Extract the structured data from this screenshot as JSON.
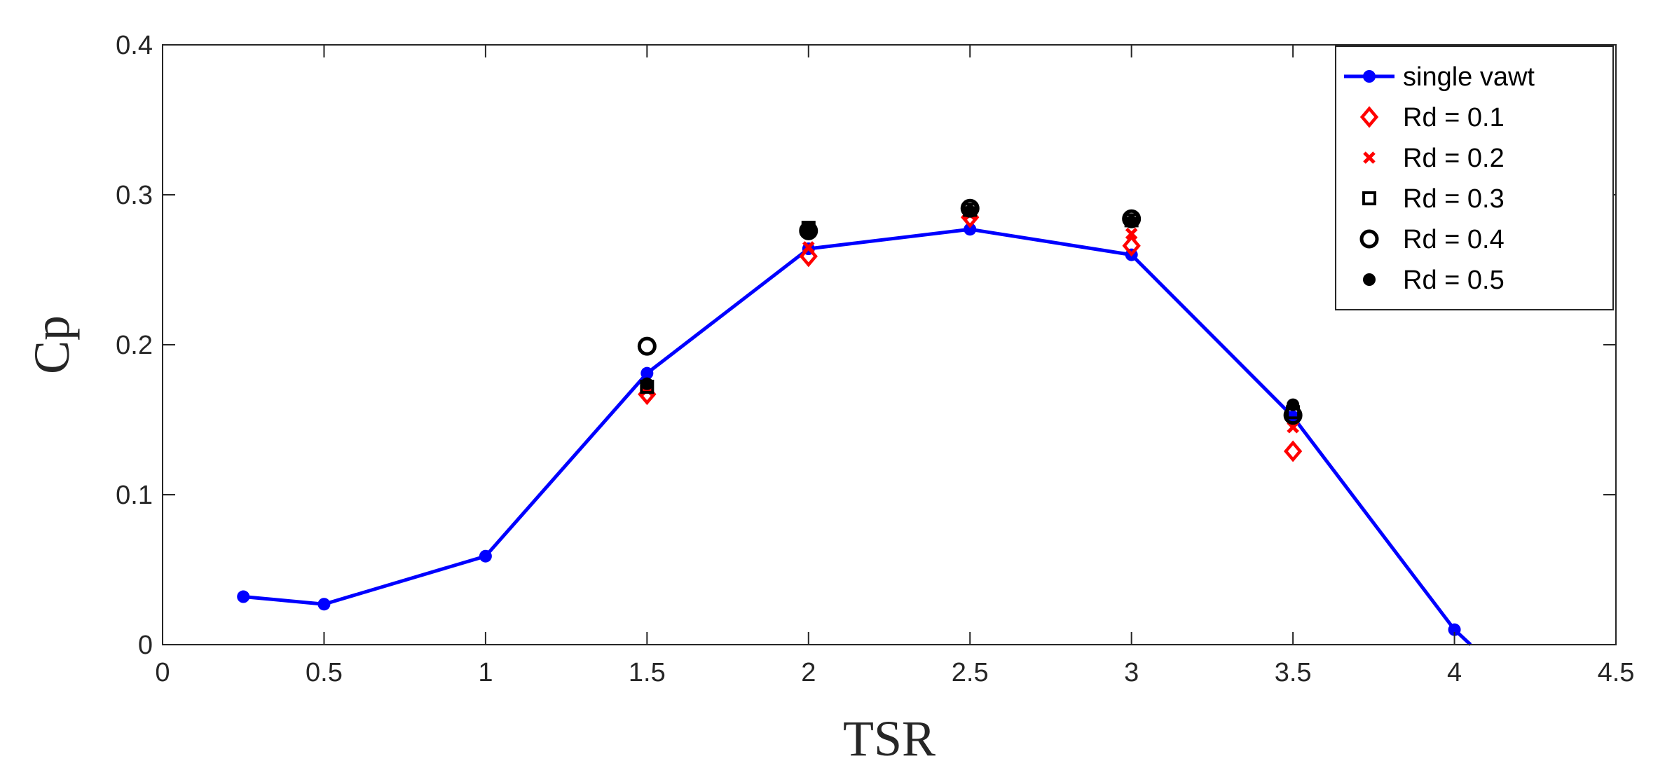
{
  "chart_data": {
    "type": "line",
    "xlabel": "TSR",
    "ylabel": "Cp",
    "xlim": [
      0,
      4.5
    ],
    "ylim": [
      0,
      0.4
    ],
    "xticks": [
      0,
      0.5,
      1,
      1.5,
      2,
      2.5,
      3,
      3.5,
      4,
      4.5
    ],
    "xtick_labels": [
      "0",
      "0.5",
      "1",
      "1.5",
      "2",
      "2.5",
      "3",
      "3.5",
      "4",
      "4.5"
    ],
    "yticks": [
      0,
      0.1,
      0.2,
      0.3,
      0.4
    ],
    "ytick_labels": [
      "0",
      "0.1",
      "0.2",
      "0.3",
      "0.4"
    ],
    "grid": false,
    "legend_position": "top-right",
    "series": [
      {
        "name": "single vawt",
        "style": "line-dot",
        "color": "#0000ff",
        "x": [
          0.25,
          0.5,
          1,
          1.5,
          2,
          2.5,
          3,
          3.5,
          4
        ],
        "y": [
          0.032,
          0.027,
          0.059,
          0.181,
          0.264,
          0.277,
          0.26,
          0.152,
          0.01
        ],
        "line_x": [
          0.25,
          0.5,
          1,
          1.5,
          2,
          2.5,
          3,
          3.5,
          4,
          4.05
        ],
        "line_y": [
          0.032,
          0.027,
          0.059,
          0.181,
          0.264,
          0.277,
          0.26,
          0.152,
          0.01,
          0.0
        ]
      },
      {
        "name": "Rd = 0.1",
        "style": "diamond",
        "color": "#ff0000",
        "x": [
          1.5,
          2,
          2.5,
          3,
          3.5
        ],
        "y": [
          0.167,
          0.259,
          0.285,
          0.266,
          0.129
        ]
      },
      {
        "name": "Rd = 0.2",
        "style": "cross",
        "color": "#ff0000",
        "x": [
          1.5,
          2,
          2.5,
          3,
          3.5
        ],
        "y": [
          0.17,
          0.265,
          0.287,
          0.274,
          0.145
        ]
      },
      {
        "name": "Rd = 0.3",
        "style": "square",
        "color": "#000000",
        "x": [
          1.5,
          2,
          2.5,
          3,
          3.5
        ],
        "y": [
          0.172,
          0.278,
          0.29,
          0.283,
          0.155
        ]
      },
      {
        "name": "Rd = 0.4",
        "style": "circle-open",
        "color": "#000000",
        "x": [
          1.5,
          2,
          2.5,
          3,
          3.5
        ],
        "y": [
          0.199,
          0.276,
          0.291,
          0.284,
          0.153
        ]
      },
      {
        "name": "Rd = 0.5",
        "style": "circle-filled",
        "color": "#000000",
        "x": [
          1.5,
          2,
          2.5,
          3,
          3.5
        ],
        "y": [
          0.174,
          0.276,
          0.289,
          0.282,
          0.16
        ]
      }
    ]
  }
}
